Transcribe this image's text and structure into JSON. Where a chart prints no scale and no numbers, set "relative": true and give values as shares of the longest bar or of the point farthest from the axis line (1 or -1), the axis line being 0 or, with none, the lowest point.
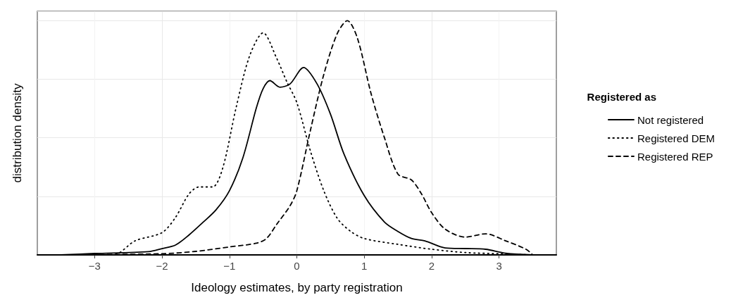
{
  "chart_data": {
    "type": "line",
    "relative": true,
    "xlabel": "Ideology estimates, by party registration",
    "ylabel": "distribution density",
    "legend_title": "Registered as",
    "legend": "right",
    "grid": true,
    "marker": "none",
    "xlim": [
      -3.85,
      3.85
    ],
    "xticks": [
      -3,
      -2,
      -1,
      0,
      1,
      2,
      3
    ],
    "series": [
      {
        "name": "Not registered",
        "color": "#000000",
        "line_style": "solid",
        "x": [
          -3.5,
          -3,
          -2.2,
          -2,
          -1.8,
          -1.6,
          -1.4,
          -1.2,
          -1,
          -0.8,
          -0.6,
          -0.5,
          -0.4,
          -0.25,
          -0.1,
          0.1,
          0.3,
          0.5,
          0.7,
          1,
          1.3,
          1.5,
          1.7,
          1.9,
          2.2,
          2.5,
          2.8,
          3.1,
          3.5
        ],
        "values": [
          0,
          0.006,
          0.014,
          0.027,
          0.042,
          0.085,
          0.137,
          0.192,
          0.274,
          0.415,
          0.628,
          0.71,
          0.744,
          0.716,
          0.73,
          0.8,
          0.73,
          0.6,
          0.43,
          0.253,
          0.14,
          0.1,
          0.07,
          0.06,
          0.03,
          0.027,
          0.024,
          0.007,
          0
        ]
      },
      {
        "name": "Registered DEM",
        "color": "#000000",
        "line_style": "dotted",
        "x": [
          -3.5,
          -3,
          -2.7,
          -2.4,
          -2,
          -1.8,
          -1.6,
          -1.45,
          -1.25,
          -1.1,
          -0.9,
          -0.7,
          -0.5,
          -0.3,
          -0.15,
          0,
          0.2,
          0.4,
          0.6,
          0.8,
          1,
          1.5,
          2,
          2.5,
          3,
          3.5
        ],
        "values": [
          0,
          0,
          0.002,
          0.06,
          0.095,
          0.16,
          0.26,
          0.29,
          0.29,
          0.37,
          0.63,
          0.85,
          0.948,
          0.84,
          0.74,
          0.65,
          0.445,
          0.274,
          0.156,
          0.1,
          0.07,
          0.045,
          0.024,
          0.01,
          0.005,
          0
        ]
      },
      {
        "name": "Registered REP",
        "color": "#000000",
        "line_style": "dashed",
        "x": [
          -3.5,
          -2,
          -1.5,
          -1,
          -0.6,
          -0.45,
          -0.3,
          -0.1,
          0,
          0.2,
          0.4,
          0.6,
          0.75,
          0.9,
          1.1,
          1.3,
          1.5,
          1.7,
          1.85,
          2,
          2.2,
          2.5,
          2.8,
          3.1,
          3.4,
          3.5
        ],
        "values": [
          0,
          0.005,
          0.015,
          0.034,
          0.05,
          0.07,
          0.13,
          0.21,
          0.274,
          0.53,
          0.77,
          0.945,
          1,
          0.924,
          0.69,
          0.5,
          0.345,
          0.32,
          0.26,
          0.18,
          0.11,
          0.076,
          0.09,
          0.06,
          0.024,
          0
        ]
      }
    ]
  }
}
